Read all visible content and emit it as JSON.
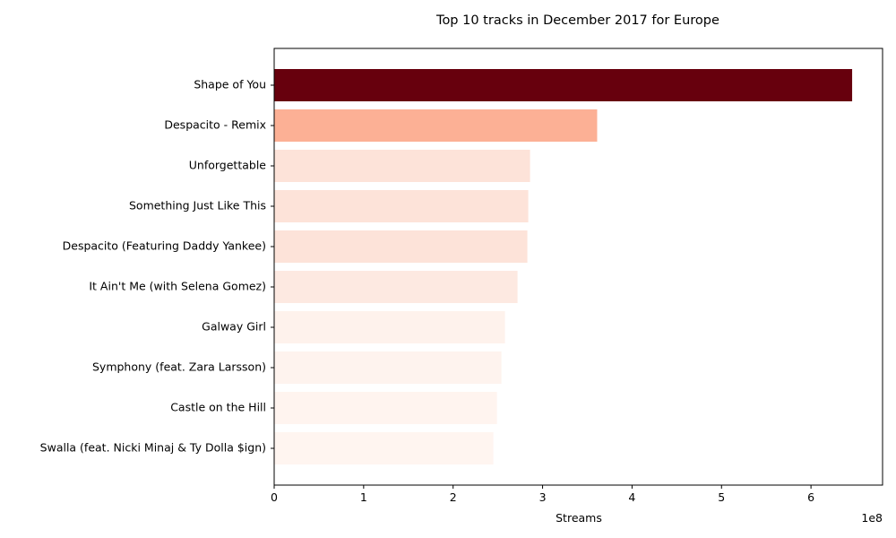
{
  "chart_data": {
    "type": "bar",
    "orientation": "horizontal",
    "title": "Top 10 tracks in December 2017 for Europe",
    "xlabel": "Streams",
    "ylabel": "",
    "x_scale_label": "1e8",
    "xlim": [
      0,
      680000000
    ],
    "x_ticks": [
      0,
      100000000,
      200000000,
      300000000,
      400000000,
      500000000,
      600000000
    ],
    "x_tick_labels": [
      "0",
      "1",
      "2",
      "3",
      "4",
      "5",
      "6"
    ],
    "grid": false,
    "categories": [
      "Shape of You",
      "Despacito - Remix",
      "Unforgettable",
      "Something Just Like This",
      "Despacito (Featuring Daddy Yankee)",
      "It Ain't Me (with Selena Gomez)",
      "Galway Girl",
      "Symphony (feat. Zara Larsson)",
      "Castle on the Hill",
      "Swalla (feat. Nicki Minaj & Ty Dolla $ign)"
    ],
    "values": [
      646000000,
      361000000,
      286000000,
      284000000,
      283000000,
      272000000,
      258000000,
      254000000,
      249000000,
      245000000
    ],
    "colors": [
      "#67000d",
      "#fcb095",
      "#fde3d9",
      "#fde3d9",
      "#fde3d9",
      "#fde9e1",
      "#fef2ec",
      "#fef3ee",
      "#fff4ef",
      "#fff5f0"
    ]
  }
}
